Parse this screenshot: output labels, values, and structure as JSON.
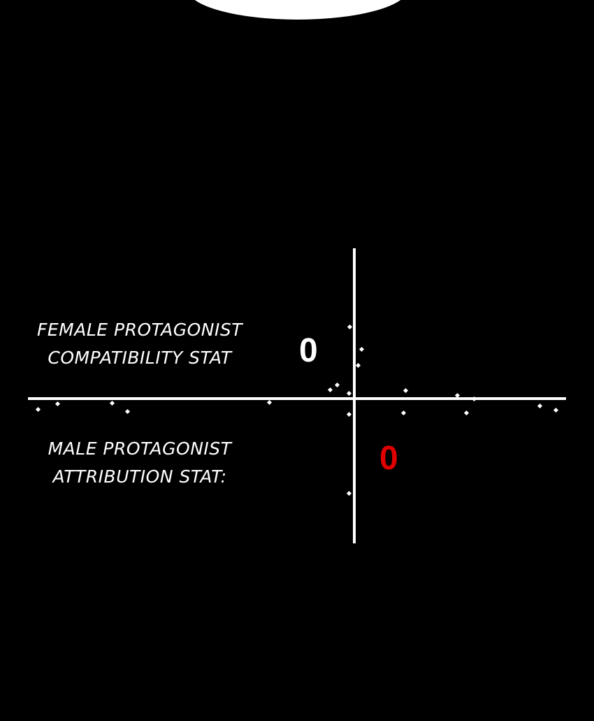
{
  "panel": {
    "female_label_line1": "FEMALE PROTAGONIST",
    "female_label_line2": "COMPATIBILITY STAT",
    "female_value": "0",
    "male_label_line1": "MALE PROTAGONIST",
    "male_label_line2": "ATTRIBUTION STAT:",
    "male_value": "0"
  },
  "colors": {
    "background": "#000000",
    "line": "#ffffff",
    "female_value": "#ffffff",
    "male_value": "#e00000"
  }
}
